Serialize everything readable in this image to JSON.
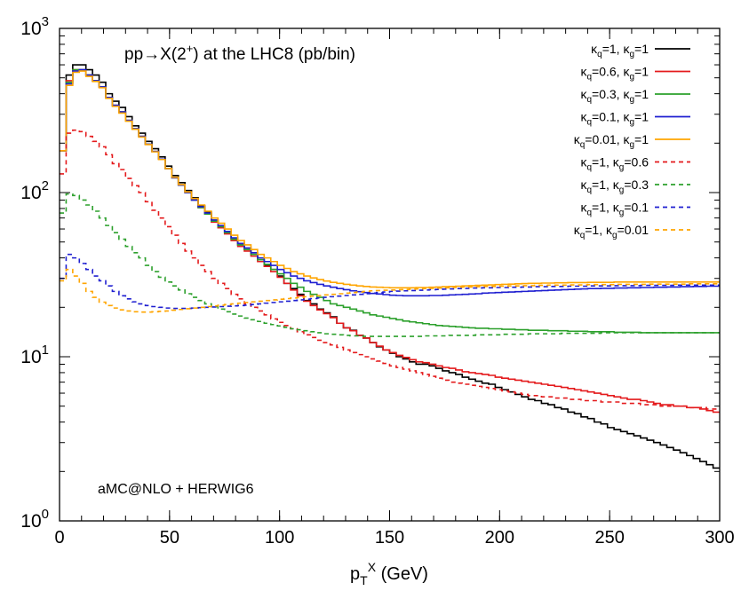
{
  "chart_data": {
    "type": "line",
    "title": "pp→X(2⁺) at the LHC8 (pb/bin)",
    "title_parts": {
      "main": "pp→X(2",
      "sup": "+",
      "tail": ") at the LHC8 (pb/bin)"
    },
    "annotation": "aMC@NLO + HERWIG6",
    "xlabel_parts": {
      "base": "p",
      "sub": "T",
      "sup": "X",
      "tail": " (GeV)"
    },
    "ylabel": "",
    "xlim": [
      0,
      300
    ],
    "ylim": [
      1,
      1000
    ],
    "yscale": "log",
    "grid": false,
    "legend_position": "top-right",
    "xticks": [
      0,
      50,
      100,
      150,
      200,
      250,
      300
    ],
    "yticks": [
      {
        "value": 1,
        "base": "10",
        "exp": "0"
      },
      {
        "value": 10,
        "base": "10",
        "exp": "1"
      },
      {
        "value": 100,
        "base": "10",
        "exp": "2"
      },
      {
        "value": 1000,
        "base": "10",
        "exp": "3"
      }
    ],
    "bin_width": 3,
    "x": [
      0,
      3,
      6,
      9,
      12,
      15,
      18,
      21,
      24,
      27,
      30,
      33,
      36,
      39,
      42,
      45,
      48,
      51,
      54,
      57,
      60,
      63,
      66,
      69,
      72,
      75,
      78,
      81,
      84,
      87,
      90,
      93,
      96,
      99,
      102,
      105,
      108,
      111,
      114,
      117,
      120,
      123,
      126,
      129,
      132,
      135,
      138,
      141,
      144,
      147,
      150,
      153,
      156,
      159,
      162,
      165,
      168,
      171,
      174,
      177,
      180,
      183,
      186,
      189,
      192,
      195,
      198,
      201,
      204,
      207,
      210,
      213,
      216,
      219,
      222,
      225,
      228,
      231,
      234,
      237,
      240,
      243,
      246,
      249,
      252,
      255,
      258,
      261,
      264,
      267,
      270,
      273,
      276,
      279,
      282,
      285,
      288,
      291,
      294,
      297
    ],
    "series": [
      {
        "name": "κq=1, κg=1",
        "kq": "1",
        "kg": "1",
        "color": "#000000",
        "dashed": false,
        "values": [
          180,
          520,
          600,
          600,
          560,
          520,
          470,
          400,
          360,
          330,
          290,
          255,
          230,
          205,
          185,
          165,
          145,
          127,
          115,
          103,
          93,
          83,
          76,
          68,
          62,
          57,
          52,
          48,
          45,
          42,
          39,
          36,
          34,
          31,
          28,
          26,
          24,
          22,
          21,
          19.5,
          18.5,
          17.5,
          16,
          15,
          14.5,
          13.5,
          13,
          12.2,
          11.5,
          11,
          10.5,
          10,
          9.7,
          9.3,
          9,
          9,
          8.8,
          8.5,
          8.2,
          8,
          7.8,
          7.5,
          7.3,
          7.1,
          6.9,
          6.8,
          6.5,
          6.3,
          6.1,
          5.9,
          5.7,
          5.5,
          5.4,
          5.2,
          5.1,
          4.9,
          4.8,
          4.6,
          4.5,
          4.3,
          4.2,
          4,
          3.9,
          3.7,
          3.6,
          3.5,
          3.4,
          3.3,
          3.2,
          3.1,
          3,
          2.9,
          2.8,
          2.7,
          2.6,
          2.5,
          2.4,
          2.3,
          2.2,
          2.1
        ]
      },
      {
        "name": "κq=0.6, κg=1",
        "kq": "0.6",
        "kg": "1",
        "color": "#e41a1c",
        "dashed": false,
        "values": [
          180,
          480,
          560,
          560,
          520,
          480,
          440,
          380,
          340,
          310,
          275,
          245,
          220,
          197,
          178,
          160,
          140,
          123,
          111,
          100,
          90,
          81,
          74,
          66,
          61,
          56,
          51,
          47,
          44,
          41,
          38,
          35.5,
          33,
          30.5,
          28,
          25.5,
          23.5,
          21.8,
          20.5,
          19.3,
          18.3,
          17.3,
          16,
          15,
          14.4,
          13.5,
          13,
          12.2,
          11.6,
          11,
          10.6,
          10.2,
          9.9,
          9.6,
          9.3,
          9.2,
          9,
          8.8,
          8.6,
          8.5,
          8.3,
          8.1,
          8,
          7.9,
          7.8,
          7.7,
          7.5,
          7.4,
          7.3,
          7.2,
          7.1,
          7,
          6.9,
          6.8,
          6.7,
          6.6,
          6.5,
          6.4,
          6.3,
          6.2,
          6.1,
          6,
          5.9,
          5.8,
          5.7,
          5.6,
          5.5,
          5.5,
          5.4,
          5.3,
          5.2,
          5.1,
          5.1,
          5,
          5,
          4.9,
          4.9,
          4.8,
          4.7,
          4.6
        ]
      },
      {
        "name": "κq=0.3, κg=1",
        "kq": "0.3",
        "kg": "1",
        "color": "#2ca02c",
        "dashed": false,
        "values": [
          180,
          470,
          560,
          560,
          520,
          480,
          440,
          380,
          340,
          310,
          275,
          245,
          220,
          197,
          178,
          160,
          140,
          123,
          111,
          100,
          90,
          81,
          74,
          67,
          62,
          57,
          52,
          48,
          45,
          42,
          39,
          36.5,
          34,
          32,
          30,
          28,
          26.5,
          25,
          24,
          23,
          22,
          21,
          20.5,
          20,
          19.5,
          19,
          18.5,
          18,
          17.7,
          17.4,
          17.1,
          16.8,
          16.5,
          16.3,
          16.1,
          15.9,
          15.7,
          15.5,
          15.4,
          15.3,
          15.2,
          15.1,
          15,
          14.9,
          14.9,
          14.8,
          14.8,
          14.7,
          14.7,
          14.6,
          14.6,
          14.5,
          14.5,
          14.5,
          14.4,
          14.4,
          14.4,
          14.3,
          14.3,
          14.3,
          14.2,
          14.2,
          14.2,
          14.2,
          14.1,
          14.1,
          14.1,
          14.1,
          14,
          14,
          14,
          14,
          14,
          14,
          14,
          14,
          14,
          14,
          14,
          14
        ]
      },
      {
        "name": "κq=0.1, κg=1",
        "kq": "0.1",
        "kg": "1",
        "color": "#1f1fd0",
        "dashed": false,
        "values": [
          180,
          460,
          550,
          560,
          520,
          480,
          440,
          380,
          340,
          310,
          275,
          245,
          220,
          197,
          178,
          160,
          140,
          123,
          111,
          100,
          90,
          82,
          75,
          68,
          63,
          58,
          53,
          49,
          46,
          43,
          40,
          38,
          36,
          34,
          32.5,
          31,
          30,
          29,
          28.3,
          27.6,
          27,
          26.5,
          26,
          25.6,
          25.2,
          24.9,
          24.6,
          24.3,
          24.1,
          23.9,
          23.7,
          23.6,
          23.5,
          23.5,
          23.5,
          23.5,
          23.6,
          23.6,
          23.7,
          23.8,
          23.9,
          24,
          24.1,
          24.2,
          24.4,
          24.5,
          24.6,
          24.7,
          24.8,
          24.9,
          25,
          25.1,
          25.2,
          25.3,
          25.4,
          25.5,
          25.6,
          25.7,
          25.8,
          25.9,
          26,
          26,
          26.1,
          26.1,
          26.2,
          26.2,
          26.3,
          26.3,
          26.4,
          26.4,
          26.5,
          26.5,
          26.6,
          26.6,
          26.7,
          26.7,
          26.8,
          26.8,
          26.9,
          26.9
        ]
      },
      {
        "name": "κq=0.01, κg=1",
        "kq": "0.01",
        "kg": "1",
        "color": "#ffa500",
        "dashed": false,
        "values": [
          180,
          450,
          540,
          550,
          510,
          475,
          435,
          375,
          335,
          305,
          272,
          243,
          218,
          196,
          177,
          159,
          140,
          124,
          112,
          101,
          92,
          84,
          77,
          70,
          65,
          60,
          55,
          51,
          48,
          45,
          42,
          40,
          38,
          36,
          34.5,
          33,
          32,
          31,
          30.2,
          29.5,
          28.9,
          28.4,
          28,
          27.6,
          27.3,
          27,
          26.8,
          26.6,
          26.5,
          26.4,
          26.3,
          26.3,
          26.3,
          26.3,
          26.4,
          26.4,
          26.5,
          26.6,
          26.7,
          26.8,
          26.9,
          27,
          27.1,
          27.2,
          27.3,
          27.4,
          27.5,
          27.6,
          27.7,
          27.8,
          27.9,
          28,
          28,
          28.1,
          28.1,
          28.2,
          28.2,
          28.3,
          28.3,
          28.3,
          28.4,
          28.4,
          28.4,
          28.4,
          28.5,
          28.5,
          28.5,
          28.5,
          28.5,
          28.5,
          28.5,
          28.5,
          28.5,
          28.5,
          28.5,
          28.5,
          28.5,
          28.5,
          28.5,
          28.5
        ]
      },
      {
        "name": "κq=1, κg=0.6",
        "kq": "1",
        "kg": "0.6",
        "color": "#e41a1c",
        "dashed": true,
        "values": [
          130,
          230,
          240,
          235,
          220,
          205,
          190,
          170,
          150,
          138,
          122,
          110,
          100,
          88,
          78,
          70,
          62,
          55,
          49,
          44,
          40,
          36,
          33,
          30,
          28,
          26,
          24,
          22.5,
          21,
          20,
          19,
          18,
          17,
          16.2,
          15.5,
          14.8,
          14.2,
          13.6,
          13.1,
          12.6,
          12.2,
          11.8,
          11.4,
          11,
          10.6,
          10.3,
          10,
          9.7,
          9.4,
          9.1,
          8.8,
          8.6,
          8.4,
          8.2,
          8,
          7.8,
          7.6,
          7.4,
          7.2,
          7,
          6.9,
          6.8,
          6.7,
          6.6,
          6.5,
          6.4,
          6.3,
          6.2,
          6.1,
          6,
          5.9,
          5.8,
          5.8,
          5.7,
          5.7,
          5.6,
          5.6,
          5.5,
          5.5,
          5.4,
          5.4,
          5.4,
          5.3,
          5.3,
          5.3,
          5.2,
          5.2,
          5.2,
          5.1,
          5.1,
          5.1,
          5,
          5,
          5,
          5,
          4.9,
          4.9,
          4.9,
          4.8,
          4.8
        ]
      },
      {
        "name": "κq=1, κg=0.3",
        "kq": "1",
        "kg": "0.3",
        "color": "#2ca02c",
        "dashed": true,
        "values": [
          75,
          98,
          96,
          90,
          84,
          77,
          70,
          63,
          57,
          52,
          47,
          43,
          40,
          36,
          33,
          30.5,
          28.5,
          27,
          25.5,
          24.2,
          23,
          22,
          21,
          20.2,
          19.5,
          18.8,
          18.2,
          17.7,
          17.2,
          16.8,
          16.4,
          16,
          15.7,
          15.4,
          15.1,
          14.8,
          14.6,
          14.4,
          14.2,
          14,
          13.8,
          13.7,
          13.6,
          13.5,
          13.4,
          13.4,
          13.3,
          13.3,
          13.3,
          13.3,
          13.3,
          13.3,
          13.3,
          13.3,
          13.3,
          13.4,
          13.4,
          13.4,
          13.4,
          13.5,
          13.5,
          13.5,
          13.5,
          13.6,
          13.6,
          13.6,
          13.6,
          13.7,
          13.7,
          13.7,
          13.7,
          13.8,
          13.8,
          13.8,
          13.8,
          13.8,
          13.9,
          13.9,
          13.9,
          13.9,
          13.9,
          13.9,
          14,
          14,
          14,
          14,
          14,
          14,
          14,
          14,
          14,
          14,
          14,
          14,
          14,
          14,
          14,
          14,
          14,
          14
        ]
      },
      {
        "name": "κq=1, κg=0.1",
        "kq": "1",
        "kg": "0.1",
        "color": "#1f1fd0",
        "dashed": true,
        "values": [
          30,
          42,
          40,
          37,
          34,
          31,
          29,
          27,
          25,
          23.5,
          22.5,
          21.6,
          21,
          20.5,
          20.2,
          20,
          19.8,
          19.7,
          19.7,
          19.7,
          19.8,
          19.9,
          20,
          20.1,
          20.2,
          20.3,
          20.4,
          20.5,
          20.6,
          20.8,
          21,
          21.2,
          21.4,
          21.6,
          21.8,
          22,
          22.2,
          22.4,
          22.6,
          22.8,
          23,
          23.2,
          23.4,
          23.6,
          23.8,
          24,
          24.2,
          24.4,
          24.6,
          24.8,
          25,
          25.1,
          25.2,
          25.3,
          25.4,
          25.5,
          25.6,
          25.7,
          25.8,
          25.9,
          26,
          26.1,
          26.2,
          26.2,
          26.3,
          26.3,
          26.4,
          26.4,
          26.5,
          26.5,
          26.6,
          26.6,
          26.7,
          26.7,
          26.8,
          26.8,
          26.8,
          26.9,
          26.9,
          26.9,
          27,
          27,
          27,
          27,
          27.1,
          27.1,
          27.1,
          27.1,
          27.2,
          27.2,
          27.2,
          27.2,
          27.2,
          27.3,
          27.3,
          27.3,
          27.3,
          27.3,
          27.3,
          27.3
        ]
      },
      {
        "name": "κq=1, κg=0.01",
        "kq": "1",
        "kg": "0.01",
        "color": "#ffa500",
        "dashed": true,
        "values": [
          29,
          34,
          31,
          28,
          25,
          23,
          21.5,
          20.5,
          19.8,
          19.3,
          19,
          18.8,
          18.7,
          18.7,
          18.8,
          18.9,
          19,
          19.2,
          19.4,
          19.6,
          19.8,
          20,
          20.2,
          20.4,
          20.6,
          20.8,
          21,
          21.2,
          21.4,
          21.6,
          21.8,
          22,
          22.2,
          22.4,
          22.6,
          22.8,
          23,
          23.2,
          23.4,
          23.6,
          23.8,
          24,
          24.2,
          24.4,
          24.6,
          24.8,
          25,
          25.2,
          25.3,
          25.4,
          25.5,
          25.6,
          25.7,
          25.8,
          25.9,
          26,
          26.1,
          26.2,
          26.3,
          26.4,
          26.5,
          26.6,
          26.6,
          26.7,
          26.8,
          26.8,
          26.9,
          26.9,
          27,
          27,
          27.1,
          27.1,
          27.2,
          27.2,
          27.3,
          27.3,
          27.3,
          27.4,
          27.4,
          27.4,
          27.5,
          27.5,
          27.5,
          27.5,
          27.6,
          27.6,
          27.6,
          27.6,
          27.6,
          27.7,
          27.7,
          27.7,
          27.7,
          27.7,
          27.7,
          27.8,
          27.8,
          27.8,
          27.8,
          27.8
        ]
      }
    ]
  }
}
